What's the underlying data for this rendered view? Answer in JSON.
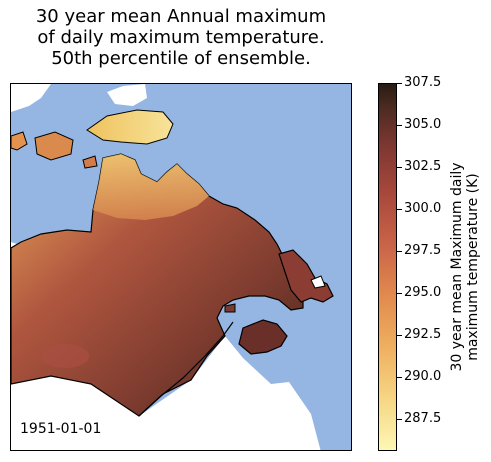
{
  "title": {
    "line1": "30 year mean Annual maximum",
    "line2": "of daily maximum temperature.",
    "line3": "50th percentile of ensemble."
  },
  "date_label": "1951-01-01",
  "colorbar": {
    "label_line1": "30 year mean Maximum daily",
    "label_line2": "maximum temperature (K)",
    "ticks": [
      "307.5",
      "305.0",
      "302.5",
      "300.0",
      "297.5",
      "295.0",
      "292.5",
      "290.0",
      "287.5"
    ],
    "tick_values": [
      307.5,
      305.0,
      302.5,
      300.0,
      297.5,
      295.0,
      292.5,
      290.0,
      287.5
    ],
    "range": [
      286.0,
      307.5
    ],
    "colormap": [
      "#fdf7b5",
      "#f6d684",
      "#eeb060",
      "#e28a4f",
      "#c96448",
      "#a8483c",
      "#7a3630",
      "#4a2a20",
      "#281c12"
    ]
  },
  "map": {
    "ocean_color": "#95b6e2",
    "land_masked_color": "#ffffff"
  }
}
